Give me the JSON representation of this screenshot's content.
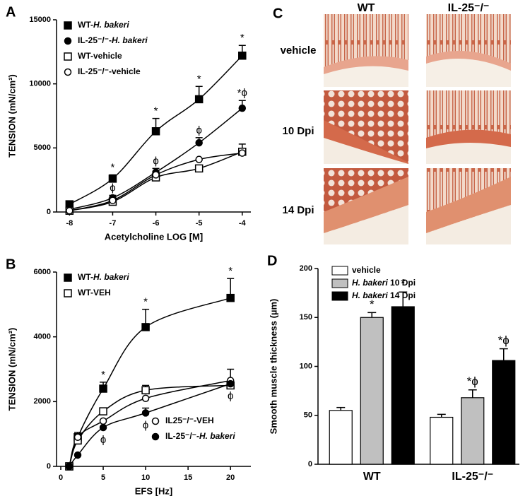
{
  "chart_data": [
    {
      "panel": "A",
      "type": "line",
      "x_label": "Acetylcholine LOG [M]",
      "y_label": "TENSION (mN/cm²)",
      "x": [
        -8,
        -7,
        -6,
        -5,
        -4
      ],
      "xlim": [
        -8.3,
        -3.8
      ],
      "xticks": [
        -8,
        -7,
        -6,
        -5,
        -4
      ],
      "ylim": [
        0,
        15000
      ],
      "yticks": [
        0,
        5000,
        10000,
        15000
      ],
      "legend": "upper left",
      "series": [
        {
          "name": "WT-H. bakeri",
          "marker": "square",
          "color": "#000000",
          "marker_fill": "#000000",
          "values": [
            600,
            2600,
            6300,
            8800,
            12200
          ],
          "errors": [
            null,
            300,
            1000,
            1000,
            800
          ],
          "point_labels": [
            null,
            "*",
            "*",
            "*",
            "*"
          ]
        },
        {
          "name": "IL-25⁻/⁻-H. bakeri",
          "marker": "circle",
          "color": "#000000",
          "marker_fill": "#000000",
          "values": [
            200,
            1100,
            3100,
            5400,
            8100
          ],
          "errors": [
            null,
            200,
            300,
            400,
            600
          ],
          "point_labels": [
            null,
            "ϕ",
            "ϕ",
            "ϕ",
            "*ϕ"
          ]
        },
        {
          "name": "WT-vehicle",
          "marker": "square",
          "color": "#000000",
          "marker_fill": "#ffffff",
          "values": [
            100,
            800,
            2700,
            3400,
            4700
          ],
          "errors": [
            null,
            null,
            null,
            null,
            600
          ]
        },
        {
          "name": "IL-25⁻/⁻-vehicle",
          "marker": "circle",
          "color": "#000000",
          "marker_fill": "#ffffff",
          "values": [
            100,
            900,
            2900,
            4100,
            4600
          ]
        }
      ]
    },
    {
      "panel": "B",
      "type": "line",
      "x_label": "EFS [Hz]",
      "y_label": "TENSION (mN/cm²)",
      "x": [
        1,
        2,
        5,
        10,
        20
      ],
      "xlim": [
        -0.5,
        22.4
      ],
      "xticks": [
        0,
        5,
        10,
        15,
        20
      ],
      "ylim": [
        0,
        6000
      ],
      "yticks": [
        0,
        2000,
        4000,
        6000
      ],
      "series": [
        {
          "name": "WT-H. bakeri",
          "marker": "square",
          "color": "#000000",
          "marker_fill": "#000000",
          "legend": "upper left",
          "values": [
            0,
            900,
            2400,
            4300,
            5200
          ],
          "errors": [
            null,
            null,
            200,
            550,
            600
          ],
          "point_labels": [
            null,
            null,
            "*",
            "*",
            "*"
          ]
        },
        {
          "name": "WT-VEH",
          "marker": "square",
          "color": "#000000",
          "marker_fill": "#ffffff",
          "legend": "upper left",
          "values": [
            0,
            800,
            1700,
            2350,
            2500
          ],
          "errors": [
            null,
            null,
            null,
            150,
            null
          ]
        },
        {
          "name": "IL25⁻/⁻-VEH",
          "marker": "circle",
          "color": "#000000",
          "marker_fill": "#ffffff",
          "legend": "lower right",
          "values": [
            0,
            900,
            1400,
            2100,
            2650
          ],
          "errors": [
            null,
            150,
            null,
            null,
            350
          ]
        },
        {
          "name": "IL-25⁻/⁻-H. bakeri",
          "marker": "circle",
          "color": "#000000",
          "marker_fill": "#000000",
          "legend": "lower right",
          "values": [
            0,
            350,
            1200,
            1650,
            2550
          ],
          "errors": [
            null,
            null,
            null,
            150,
            null
          ],
          "point_labels": [
            null,
            null,
            "ϕ",
            "ϕ",
            "ϕ"
          ],
          "label_position": "below"
        }
      ]
    },
    {
      "panel": "D",
      "type": "bar",
      "y_label": "Smooth muscle thickness (µm)",
      "categories": [
        "WT",
        "IL-25⁻/⁻"
      ],
      "ylim": [
        0,
        200
      ],
      "yticks": [
        0,
        50,
        100,
        150,
        200
      ],
      "legend": "upper left",
      "series": [
        {
          "name": "vehicle",
          "color": "#ffffff",
          "values": [
            55,
            48
          ],
          "errors": [
            3,
            3
          ]
        },
        {
          "name": "H. bakeri 10 Dpi",
          "color": "#c0c0c0",
          "values": [
            150,
            68
          ],
          "errors": [
            5,
            8
          ],
          "point_labels": [
            "*",
            "*ϕ"
          ]
        },
        {
          "name": "H. bakeri 14 Dpi",
          "color": "#000000",
          "values": [
            161,
            106
          ],
          "errors": [
            15,
            12
          ],
          "point_labels": [
            "*",
            "*ϕ"
          ]
        }
      ]
    }
  ],
  "panel_c": {
    "panel": "C",
    "columns": [
      "WT",
      "IL-25⁻/⁻"
    ],
    "rows": [
      "vehicle",
      "10 Dpi",
      "14 Dpi"
    ]
  }
}
